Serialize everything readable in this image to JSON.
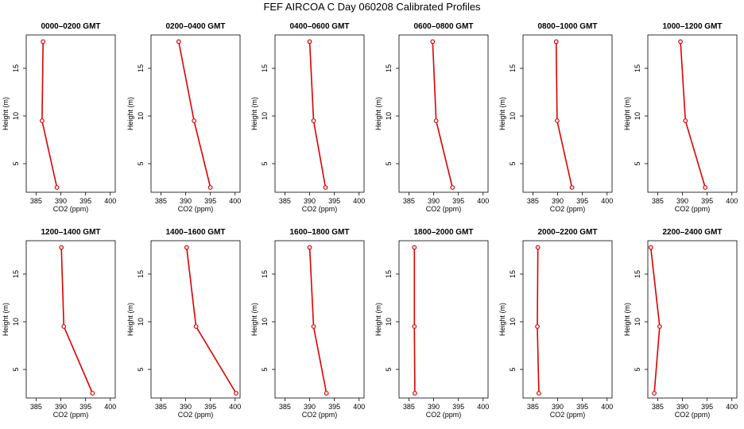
{
  "figure_title": "FEF AIRCOA C  Day 060208  Calibrated Profiles",
  "chart_data": {
    "type": "line",
    "title": "FEF AIRCOA C  Day 060208  Calibrated Profiles",
    "xlabel": "CO2 (ppm)",
    "ylabel": "Height (m)",
    "xlim": [
      383,
      401
    ],
    "ylim": [
      2,
      18.5
    ],
    "xticks": [
      385,
      390,
      395,
      400
    ],
    "yticks": [
      5,
      10,
      15
    ],
    "line_color": "#dd0000",
    "heights": [
      2.5,
      9.5,
      17.8
    ],
    "panels": [
      {
        "title": "0000–0200 GMT",
        "co2": [
          389.2,
          386.2,
          386.4
        ]
      },
      {
        "title": "0200–0400 GMT",
        "co2": [
          395.0,
          391.7,
          388.6
        ]
      },
      {
        "title": "0400–0600 GMT",
        "co2": [
          393.2,
          390.8,
          390.0
        ]
      },
      {
        "title": "0600–0800 GMT",
        "co2": [
          393.8,
          390.5,
          389.8
        ]
      },
      {
        "title": "0800–1000 GMT",
        "co2": [
          392.9,
          389.9,
          389.7
        ]
      },
      {
        "title": "1000–1200 GMT",
        "co2": [
          394.6,
          390.6,
          389.6
        ]
      },
      {
        "title": "1200–1400 GMT",
        "co2": [
          396.4,
          390.6,
          390.1
        ]
      },
      {
        "title": "1400–1600 GMT",
        "co2": [
          400.2,
          392.1,
          390.2
        ]
      },
      {
        "title": "1600–1800 GMT",
        "co2": [
          393.4,
          390.8,
          390.0
        ]
      },
      {
        "title": "1800–2000 GMT",
        "co2": [
          386.2,
          386.1,
          386.1
        ]
      },
      {
        "title": "2000–2200 GMT",
        "co2": [
          386.2,
          385.9,
          386.0
        ]
      },
      {
        "title": "2200–2400 GMT",
        "co2": [
          384.3,
          385.4,
          383.6
        ]
      }
    ]
  }
}
